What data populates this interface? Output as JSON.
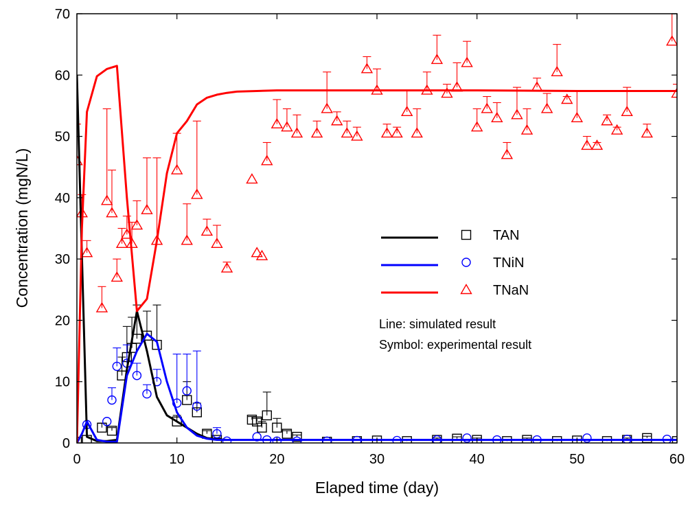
{
  "chart_data": {
    "type": "scatter",
    "xlabel": "Elaped time (day)",
    "ylabel": "Concentration (mgN/L)",
    "xlim": [
      0,
      60
    ],
    "ylim": [
      0,
      70
    ],
    "xticks": [
      0,
      10,
      20,
      30,
      40,
      50,
      60
    ],
    "yticks": [
      0,
      10,
      20,
      30,
      40,
      50,
      60,
      70
    ],
    "grid": false,
    "legend_position": "center-right",
    "notes": [
      "Line: simulated result",
      "Symbol: experimental result"
    ],
    "series": [
      {
        "name": "TAN",
        "color": "#000000",
        "marker": "square",
        "line": {
          "x": [
            0,
            1,
            2,
            3,
            4,
            5,
            6,
            7,
            8,
            9,
            10,
            11,
            12,
            13,
            14,
            15,
            20,
            30,
            40,
            50,
            60
          ],
          "y": [
            60,
            1,
            0.3,
            0.3,
            0.5,
            12,
            21.5,
            15,
            7.5,
            4.5,
            3.5,
            2.5,
            1.5,
            0.8,
            0.6,
            0.5,
            0.5,
            0.5,
            0.5,
            0.5,
            0.5
          ]
        },
        "points": [
          {
            "x": 0,
            "y": 0.2,
            "err": 0
          },
          {
            "x": 1,
            "y": 0.5,
            "err": 0
          },
          {
            "x": 2.5,
            "y": 2.5,
            "err": 0.7
          },
          {
            "x": 3.5,
            "y": 2,
            "err": 0.5
          },
          {
            "x": 4.5,
            "y": 11,
            "err": 3
          },
          {
            "x": 5,
            "y": 14,
            "err": 5
          },
          {
            "x": 5.5,
            "y": 15.5,
            "err": 5
          },
          {
            "x": 6,
            "y": 17,
            "err": 5.5
          },
          {
            "x": 7,
            "y": 17.5,
            "err": 4
          },
          {
            "x": 8,
            "y": 16,
            "err": 6.5
          },
          {
            "x": 10,
            "y": 3.5,
            "err": 1
          },
          {
            "x": 11,
            "y": 7,
            "err": 3
          },
          {
            "x": 12,
            "y": 5,
            "err": 1.5
          },
          {
            "x": 13,
            "y": 1.5,
            "err": 0.5
          },
          {
            "x": 14,
            "y": 0.5,
            "err": 0.3
          },
          {
            "x": 17.5,
            "y": 3.8,
            "err": 0.5
          },
          {
            "x": 18,
            "y": 3.5,
            "err": 0.5
          },
          {
            "x": 18.5,
            "y": 2.5,
            "err": 1
          },
          {
            "x": 19,
            "y": 4.5,
            "err": 3.8
          },
          {
            "x": 20,
            "y": 2.5,
            "err": 1.5
          },
          {
            "x": 21,
            "y": 1.5,
            "err": 0.5
          },
          {
            "x": 22,
            "y": 1,
            "err": 0.3
          },
          {
            "x": 25,
            "y": 0.2,
            "err": 0
          },
          {
            "x": 28,
            "y": 0.3,
            "err": 0
          },
          {
            "x": 30,
            "y": 0.4,
            "err": 0.2
          },
          {
            "x": 33,
            "y": 0.3,
            "err": 0.2
          },
          {
            "x": 36,
            "y": 0.5,
            "err": 0.3
          },
          {
            "x": 38,
            "y": 0.7,
            "err": 0.3
          },
          {
            "x": 40,
            "y": 0.5,
            "err": 0.3
          },
          {
            "x": 43,
            "y": 0.3,
            "err": 0.2
          },
          {
            "x": 45,
            "y": 0.5,
            "err": 0.3
          },
          {
            "x": 48,
            "y": 0.3,
            "err": 0.2
          },
          {
            "x": 50,
            "y": 0.4,
            "err": 0.2
          },
          {
            "x": 53,
            "y": 0.3,
            "err": 0.2
          },
          {
            "x": 55,
            "y": 0.5,
            "err": 0.3
          },
          {
            "x": 57,
            "y": 0.8,
            "err": 0.3
          },
          {
            "x": 60,
            "y": 0.3,
            "err": 0.2
          }
        ]
      },
      {
        "name": "TNiN",
        "color": "#0000ff",
        "marker": "circle",
        "line": {
          "x": [
            0,
            0.5,
            1,
            1.5,
            2,
            3,
            4,
            5,
            6,
            7,
            8,
            9,
            10,
            11,
            12,
            13,
            14,
            20,
            30,
            40,
            50,
            60
          ],
          "y": [
            0,
            1.5,
            3.5,
            2,
            0.5,
            0.2,
            0.2,
            11,
            15,
            17.8,
            16.5,
            10,
            5,
            2.5,
            1.2,
            0.7,
            0.5,
            0.5,
            0.5,
            0.5,
            0.5,
            0.5
          ]
        },
        "points": [
          {
            "x": 1,
            "y": 3,
            "err": 0
          },
          {
            "x": 3,
            "y": 3.5,
            "err": 0
          },
          {
            "x": 3.5,
            "y": 7,
            "err": 2
          },
          {
            "x": 4,
            "y": 12.5,
            "err": 3
          },
          {
            "x": 5,
            "y": 13,
            "err": 3
          },
          {
            "x": 6,
            "y": 11,
            "err": 2
          },
          {
            "x": 7,
            "y": 8,
            "err": 1.5
          },
          {
            "x": 8,
            "y": 10,
            "err": 2
          },
          {
            "x": 10,
            "y": 6.5,
            "err": 8
          },
          {
            "x": 11,
            "y": 8.5,
            "err": 6
          },
          {
            "x": 12,
            "y": 6,
            "err": 9
          },
          {
            "x": 14,
            "y": 1.5,
            "err": 1
          },
          {
            "x": 15,
            "y": 0.3,
            "err": 0
          },
          {
            "x": 18,
            "y": 1,
            "err": 0
          },
          {
            "x": 19,
            "y": 0.5,
            "err": 0
          },
          {
            "x": 20,
            "y": 0.3,
            "err": 0
          },
          {
            "x": 22,
            "y": 0.3,
            "err": 0
          },
          {
            "x": 25,
            "y": 0.3,
            "err": 0
          },
          {
            "x": 28,
            "y": 0.4,
            "err": 0
          },
          {
            "x": 32,
            "y": 0.4,
            "err": 0
          },
          {
            "x": 36,
            "y": 0.5,
            "err": 0
          },
          {
            "x": 39,
            "y": 0.8,
            "err": 0
          },
          {
            "x": 42,
            "y": 0.5,
            "err": 0
          },
          {
            "x": 46,
            "y": 0.5,
            "err": 0
          },
          {
            "x": 51,
            "y": 0.8,
            "err": 0
          },
          {
            "x": 55,
            "y": 0.6,
            "err": 0
          },
          {
            "x": 59,
            "y": 0.6,
            "err": 0
          }
        ]
      },
      {
        "name": "TNaN",
        "color": "#ff0000",
        "marker": "triangle",
        "line": {
          "x": [
            0,
            0.5,
            1,
            2,
            3,
            4,
            5,
            6,
            7,
            8,
            9,
            10,
            11,
            12,
            13,
            14,
            15,
            16,
            18,
            20,
            25,
            30,
            40,
            50,
            60
          ],
          "y": [
            0,
            35,
            54,
            59.8,
            61,
            61.5,
            40,
            21.5,
            23.5,
            33,
            44,
            50.5,
            52.5,
            55.2,
            56.3,
            56.8,
            57.1,
            57.3,
            57.4,
            57.5,
            57.5,
            57.5,
            57.5,
            57.4,
            57.4
          ]
        },
        "points": [
          {
            "x": 0,
            "y": 46,
            "err": 6
          },
          {
            "x": 0.5,
            "y": 37.5,
            "err": 3
          },
          {
            "x": 1,
            "y": 31,
            "err": 2
          },
          {
            "x": 2.5,
            "y": 22,
            "err": 3.5
          },
          {
            "x": 3,
            "y": 39.5,
            "err": 15
          },
          {
            "x": 3.5,
            "y": 37.5,
            "err": 7
          },
          {
            "x": 4,
            "y": 27,
            "err": 3
          },
          {
            "x": 4.5,
            "y": 32.5,
            "err": 2.5
          },
          {
            "x": 5,
            "y": 34,
            "err": 3
          },
          {
            "x": 5.5,
            "y": 32.5,
            "err": 3.5
          },
          {
            "x": 6,
            "y": 35.5,
            "err": 4
          },
          {
            "x": 7,
            "y": 38,
            "err": 8.5
          },
          {
            "x": 8,
            "y": 33,
            "err": 13.5
          },
          {
            "x": 10,
            "y": 44.5,
            "err": 6
          },
          {
            "x": 11,
            "y": 33,
            "err": 6
          },
          {
            "x": 12,
            "y": 40.5,
            "err": 12
          },
          {
            "x": 13,
            "y": 34.5,
            "err": 2
          },
          {
            "x": 14,
            "y": 32.5,
            "err": 3
          },
          {
            "x": 15,
            "y": 28.5,
            "err": 1
          },
          {
            "x": 17.5,
            "y": 43,
            "err": 0
          },
          {
            "x": 18,
            "y": 31,
            "err": 0
          },
          {
            "x": 18.5,
            "y": 30.5,
            "err": 0
          },
          {
            "x": 19,
            "y": 46,
            "err": 3
          },
          {
            "x": 20,
            "y": 52,
            "err": 4
          },
          {
            "x": 21,
            "y": 51.5,
            "err": 3
          },
          {
            "x": 22,
            "y": 50.5,
            "err": 3
          },
          {
            "x": 24,
            "y": 50.5,
            "err": 2
          },
          {
            "x": 25,
            "y": 54.5,
            "err": 6
          },
          {
            "x": 26,
            "y": 52.5,
            "err": 1.5
          },
          {
            "x": 27,
            "y": 50.5,
            "err": 2
          },
          {
            "x": 28,
            "y": 50,
            "err": 1.5
          },
          {
            "x": 29,
            "y": 61,
            "err": 2
          },
          {
            "x": 30,
            "y": 57.5,
            "err": 3.5
          },
          {
            "x": 31,
            "y": 50.5,
            "err": 1.5
          },
          {
            "x": 32,
            "y": 50.5,
            "err": 1
          },
          {
            "x": 33,
            "y": 54,
            "err": 3.5
          },
          {
            "x": 34,
            "y": 50.5,
            "err": 4
          },
          {
            "x": 35,
            "y": 57.5,
            "err": 3
          },
          {
            "x": 36,
            "y": 62.5,
            "err": 4
          },
          {
            "x": 37,
            "y": 57,
            "err": 1.5
          },
          {
            "x": 38,
            "y": 58,
            "err": 4
          },
          {
            "x": 39,
            "y": 62,
            "err": 3.5
          },
          {
            "x": 40,
            "y": 51.5,
            "err": 3
          },
          {
            "x": 41,
            "y": 54.5,
            "err": 2
          },
          {
            "x": 42,
            "y": 53,
            "err": 2.5
          },
          {
            "x": 43,
            "y": 47,
            "err": 2
          },
          {
            "x": 44,
            "y": 53.5,
            "err": 4.5
          },
          {
            "x": 45,
            "y": 51,
            "err": 3.5
          },
          {
            "x": 46,
            "y": 58,
            "err": 1.5
          },
          {
            "x": 47,
            "y": 54.5,
            "err": 2.5
          },
          {
            "x": 48,
            "y": 60.5,
            "err": 4.5
          },
          {
            "x": 49,
            "y": 56,
            "err": 0.5
          },
          {
            "x": 50,
            "y": 53,
            "err": 4.5
          },
          {
            "x": 51,
            "y": 48.5,
            "err": 1.5
          },
          {
            "x": 52,
            "y": 48.5,
            "err": 0.5
          },
          {
            "x": 53,
            "y": 52.5,
            "err": 1
          },
          {
            "x": 54,
            "y": 51,
            "err": 0.5
          },
          {
            "x": 55,
            "y": 54,
            "err": 4
          },
          {
            "x": 57,
            "y": 50.5,
            "err": 1.5
          },
          {
            "x": 59.5,
            "y": 65.5,
            "err": 5
          },
          {
            "x": 60,
            "y": 57,
            "err": 1.5
          }
        ]
      }
    ]
  }
}
